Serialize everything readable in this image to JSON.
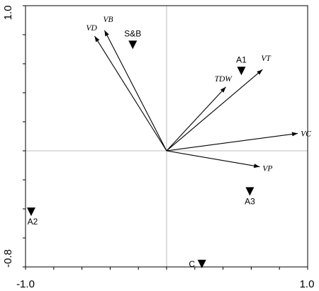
{
  "chart_data": {
    "type": "scatter",
    "title": "",
    "xlabel": "",
    "ylabel": "",
    "xlim": [
      -1.0,
      1.0
    ],
    "ylim": [
      -0.8,
      1.0
    ],
    "x_ticks": [
      "-1.0",
      "1.0"
    ],
    "y_ticks": [
      "1.0",
      "-0.8"
    ],
    "grid": false,
    "reference_lines": "x = 0 and y = 0 (light gray)",
    "vectors": [
      {
        "label": "VD",
        "x": -0.51,
        "y": 0.79
      },
      {
        "label": "VB",
        "x": -0.44,
        "y": 0.83
      },
      {
        "label": "TDW",
        "x": 0.42,
        "y": 0.44
      },
      {
        "label": "VT",
        "x": 0.68,
        "y": 0.56
      },
      {
        "label": "VC",
        "x": 0.93,
        "y": 0.12
      },
      {
        "label": "VP",
        "x": 0.66,
        "y": -0.11
      }
    ],
    "points": [
      {
        "label": "S&B",
        "x": -0.24,
        "y": 0.73
      },
      {
        "label": "A1",
        "x": 0.53,
        "y": 0.55
      },
      {
        "label": "A2",
        "x": -0.96,
        "y": -0.42
      },
      {
        "label": "A3",
        "x": 0.59,
        "y": -0.28
      },
      {
        "label": "C",
        "x": 0.25,
        "y": -0.78
      }
    ],
    "colors": {
      "arrows": "#000000",
      "points": "#000000",
      "zero_lines": "#aaaaaa",
      "frame": "#000000"
    }
  }
}
